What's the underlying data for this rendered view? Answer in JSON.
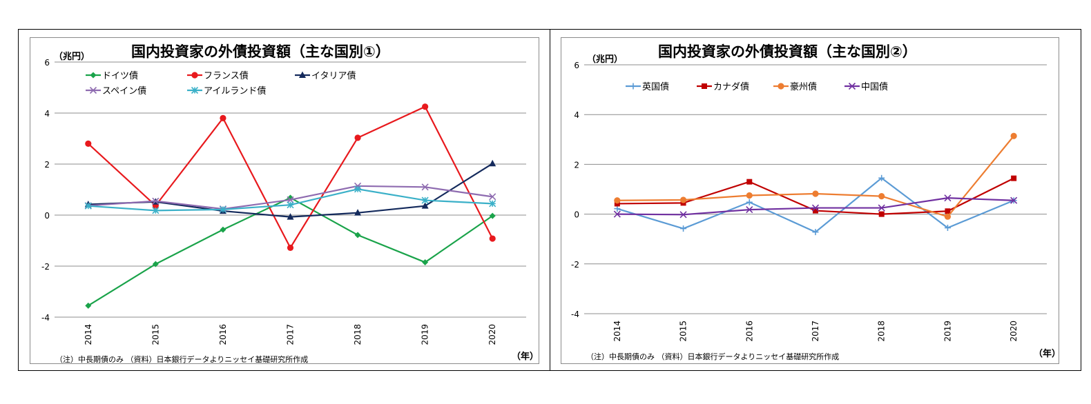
{
  "chart_data": [
    {
      "type": "line",
      "title": "国内投資家の外債投資額（主な国別①）",
      "unit": "（兆円）",
      "year_label": "（年）",
      "note": "（注）中長期債のみ （資料）日本銀行データよりニッセイ基礎研究所作成",
      "ylim": [
        -4,
        6
      ],
      "yticks": [
        "6",
        "4",
        "2",
        "0",
        "-2",
        "-4"
      ],
      "categories": [
        "2014",
        "2015",
        "2016",
        "2017",
        "2018",
        "2019",
        "2020"
      ],
      "grid": true,
      "legend_position": "top-left",
      "series": [
        {
          "name": "ドイツ債",
          "color": "#1aa34a",
          "marker": "diamond",
          "values": [
            -3.55,
            -1.92,
            -0.57,
            0.68,
            -0.78,
            -1.85,
            -0.03
          ]
        },
        {
          "name": "フランス債",
          "color": "#e8191d",
          "marker": "circle",
          "values": [
            2.8,
            0.37,
            3.8,
            -1.28,
            3.03,
            4.25,
            -0.92
          ]
        },
        {
          "name": "イタリア債",
          "color": "#142a5c",
          "marker": "triangle",
          "values": [
            0.42,
            0.52,
            0.16,
            -0.07,
            0.09,
            0.36,
            2.02
          ]
        },
        {
          "name": "スペイン債",
          "color": "#8e6bb0",
          "marker": "x",
          "values": [
            0.37,
            0.55,
            0.24,
            0.6,
            1.14,
            1.1,
            0.72
          ]
        },
        {
          "name": "アイルランド債",
          "color": "#3ab0c8",
          "marker": "asterisk",
          "values": [
            0.36,
            0.18,
            0.22,
            0.4,
            1.02,
            0.58,
            0.45
          ]
        }
      ]
    },
    {
      "type": "line",
      "title": "国内投資家の外債投資額（主な国別②）",
      "unit": "（兆円）",
      "year_label": "（年）",
      "note": "（注）中長期債のみ （資料）日本銀行データよりニッセイ基礎研究所作成",
      "ylim": [
        -4,
        6
      ],
      "yticks": [
        "6",
        "4",
        "2",
        "0",
        "-2",
        "-4"
      ],
      "categories": [
        "2014",
        "2015",
        "2016",
        "2017",
        "2018",
        "2019",
        "2020"
      ],
      "grid": true,
      "legend_position": "top-left",
      "series": [
        {
          "name": "英国債",
          "color": "#5b9bd5",
          "marker": "plus",
          "values": [
            0.22,
            -0.58,
            0.48,
            -0.72,
            1.45,
            -0.55,
            0.55
          ]
        },
        {
          "name": "カナダ債",
          "color": "#c00000",
          "marker": "square",
          "values": [
            0.42,
            0.45,
            1.3,
            0.14,
            0.0,
            0.12,
            1.44
          ]
        },
        {
          "name": "豪州債",
          "color": "#ed7d31",
          "marker": "circle",
          "values": [
            0.55,
            0.57,
            0.75,
            0.82,
            0.72,
            -0.1,
            3.14
          ]
        },
        {
          "name": "中国債",
          "color": "#7030a0",
          "marker": "x",
          "values": [
            0.0,
            -0.02,
            0.18,
            0.25,
            0.25,
            0.65,
            0.55
          ]
        }
      ]
    }
  ]
}
